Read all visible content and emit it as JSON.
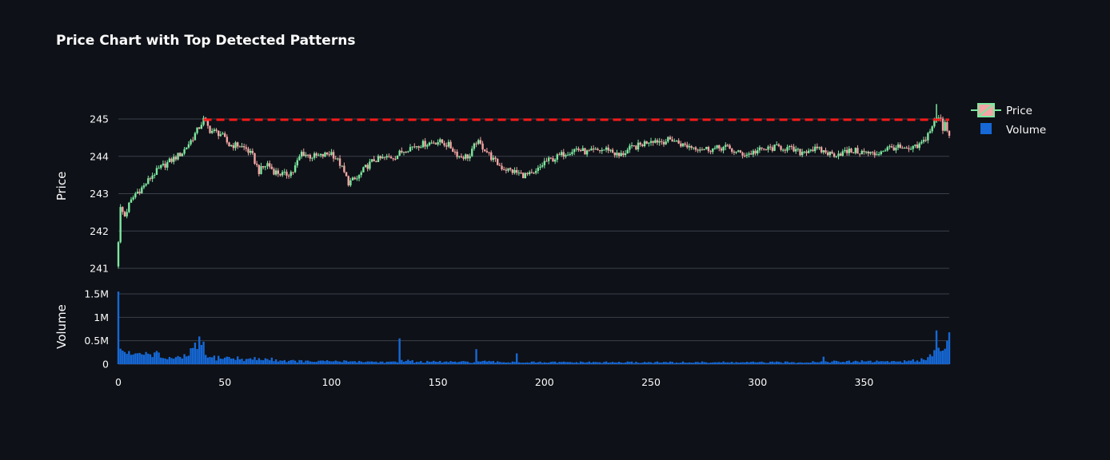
{
  "chart_data": {
    "type": "candlestick",
    "title": "Price Chart with Top Detected Patterns",
    "x_range": [
      0,
      390
    ],
    "x_ticks": [
      0,
      50,
      100,
      150,
      200,
      250,
      300,
      350
    ],
    "price_panel": {
      "ylabel": "Price",
      "ylim": [
        241,
        245.4
      ],
      "y_ticks": [
        241,
        242,
        243,
        244,
        245
      ],
      "grid": true
    },
    "volume_panel": {
      "ylabel": "Volume",
      "ylim": [
        0,
        1550000
      ],
      "y_ticks": [
        0,
        500000,
        1000000,
        1500000
      ],
      "y_tick_labels": [
        "0",
        "0.5M",
        "1M",
        "1.5M"
      ],
      "grid": true
    },
    "legend": {
      "placement": "top-right",
      "items": [
        {
          "name": "Price",
          "kind": "candlestick"
        },
        {
          "name": "Volume",
          "kind": "bar"
        }
      ]
    },
    "colors": {
      "increasing": "#7de8a0",
      "decreasing": "#f4a5a5",
      "volume": "#1668d6",
      "resistance_line": "#ff1a1a",
      "background": "#0e1117",
      "grid": "#3a3f4a",
      "text": "#fafafa"
    },
    "resistance_line": {
      "x_start": 40,
      "x_end": 390,
      "y": 244.98,
      "style": "dashed"
    },
    "price_anchors": [
      [
        0,
        241.1
      ],
      [
        1,
        242.6
      ],
      [
        3,
        242.4
      ],
      [
        5,
        242.7
      ],
      [
        8,
        243.0
      ],
      [
        12,
        243.2
      ],
      [
        16,
        243.5
      ],
      [
        20,
        243.7
      ],
      [
        25,
        243.9
      ],
      [
        30,
        244.1
      ],
      [
        35,
        244.5
      ],
      [
        40,
        244.98
      ],
      [
        43,
        244.7
      ],
      [
        48,
        244.6
      ],
      [
        52,
        244.3
      ],
      [
        56,
        244.3
      ],
      [
        60,
        244.2
      ],
      [
        63,
        244.0
      ],
      [
        66,
        243.6
      ],
      [
        70,
        243.8
      ],
      [
        73,
        243.6
      ],
      [
        78,
        243.5
      ],
      [
        82,
        243.6
      ],
      [
        86,
        244.1
      ],
      [
        90,
        244.0
      ],
      [
        95,
        244.0
      ],
      [
        100,
        244.1
      ],
      [
        104,
        243.8
      ],
      [
        108,
        243.3
      ],
      [
        112,
        243.4
      ],
      [
        116,
        243.7
      ],
      [
        120,
        243.9
      ],
      [
        125,
        243.95
      ],
      [
        130,
        244.0
      ],
      [
        135,
        244.2
      ],
      [
        140,
        244.3
      ],
      [
        145,
        244.35
      ],
      [
        150,
        244.4
      ],
      [
        155,
        244.3
      ],
      [
        160,
        244.0
      ],
      [
        165,
        244.0
      ],
      [
        168,
        244.4
      ],
      [
        172,
        244.2
      ],
      [
        176,
        243.9
      ],
      [
        180,
        243.7
      ],
      [
        185,
        243.6
      ],
      [
        190,
        243.5
      ],
      [
        195,
        243.5
      ],
      [
        200,
        243.85
      ],
      [
        205,
        243.95
      ],
      [
        210,
        244.1
      ],
      [
        215,
        244.2
      ],
      [
        220,
        244.1
      ],
      [
        225,
        244.15
      ],
      [
        230,
        244.2
      ],
      [
        235,
        244.0
      ],
      [
        240,
        244.2
      ],
      [
        245,
        244.3
      ],
      [
        250,
        244.45
      ],
      [
        255,
        244.4
      ],
      [
        260,
        244.45
      ],
      [
        265,
        244.3
      ],
      [
        270,
        244.25
      ],
      [
        275,
        244.2
      ],
      [
        280,
        244.2
      ],
      [
        285,
        244.25
      ],
      [
        290,
        244.1
      ],
      [
        295,
        244.05
      ],
      [
        300,
        244.15
      ],
      [
        305,
        244.2
      ],
      [
        310,
        244.25
      ],
      [
        315,
        244.2
      ],
      [
        320,
        244.1
      ],
      [
        325,
        244.2
      ],
      [
        330,
        244.15
      ],
      [
        335,
        244.05
      ],
      [
        340,
        244.1
      ],
      [
        345,
        244.15
      ],
      [
        350,
        244.1
      ],
      [
        355,
        244.05
      ],
      [
        360,
        244.2
      ],
      [
        365,
        244.25
      ],
      [
        370,
        244.15
      ],
      [
        375,
        244.25
      ],
      [
        378,
        244.4
      ],
      [
        381,
        244.7
      ],
      [
        383,
        244.95
      ],
      [
        385,
        245.05
      ],
      [
        386,
        244.95
      ],
      [
        387,
        244.75
      ],
      [
        388,
        244.95
      ],
      [
        389,
        244.7
      ],
      [
        390,
        244.6
      ]
    ],
    "volume_anchors": [
      [
        0,
        1550000
      ],
      [
        1,
        330000
      ],
      [
        2,
        290000
      ],
      [
        3,
        260000
      ],
      [
        4,
        220000
      ],
      [
        6,
        200000
      ],
      [
        8,
        230000
      ],
      [
        10,
        240000
      ],
      [
        12,
        200000
      ],
      [
        15,
        210000
      ],
      [
        17,
        250000
      ],
      [
        20,
        140000
      ],
      [
        25,
        130000
      ],
      [
        30,
        120000
      ],
      [
        40,
        480000
      ],
      [
        42,
        140000
      ],
      [
        50,
        140000
      ],
      [
        60,
        110000
      ],
      [
        70,
        110000
      ],
      [
        80,
        70000
      ],
      [
        90,
        60000
      ],
      [
        100,
        60000
      ],
      [
        110,
        60000
      ],
      [
        120,
        50000
      ],
      [
        131,
        40000
      ],
      [
        132,
        550000
      ],
      [
        133,
        90000
      ],
      [
        140,
        50000
      ],
      [
        150,
        50000
      ],
      [
        160,
        50000
      ],
      [
        167,
        40000
      ],
      [
        168,
        320000
      ],
      [
        169,
        60000
      ],
      [
        180,
        40000
      ],
      [
        186,
        50000
      ],
      [
        187,
        230000
      ],
      [
        188,
        40000
      ],
      [
        200,
        40000
      ],
      [
        220,
        40000
      ],
      [
        250,
        40000
      ],
      [
        280,
        40000
      ],
      [
        300,
        40000
      ],
      [
        320,
        40000
      ],
      [
        330,
        60000
      ],
      [
        331,
        160000
      ],
      [
        332,
        60000
      ],
      [
        340,
        50000
      ],
      [
        350,
        60000
      ],
      [
        360,
        60000
      ],
      [
        370,
        60000
      ],
      [
        375,
        80000
      ],
      [
        380,
        150000
      ],
      [
        383,
        300000
      ],
      [
        384,
        720000
      ],
      [
        385,
        350000
      ],
      [
        386,
        280000
      ],
      [
        387,
        290000
      ],
      [
        388,
        330000
      ],
      [
        389,
        500000
      ],
      [
        390,
        680000
      ]
    ]
  }
}
